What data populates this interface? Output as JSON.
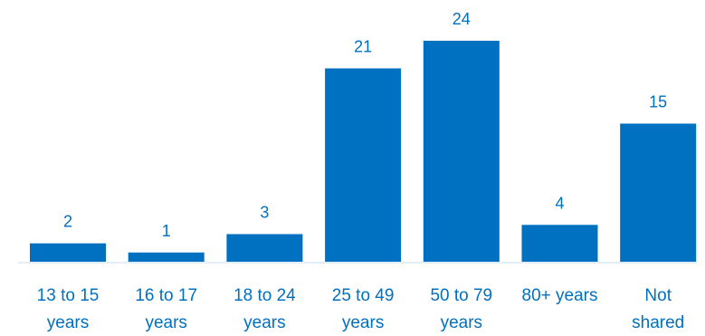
{
  "chart_data": {
    "type": "bar",
    "categories": [
      [
        "13 to 15",
        "years"
      ],
      [
        "16 to 17",
        "years"
      ],
      [
        "18 to 24",
        "years"
      ],
      [
        "25 to 49",
        "years"
      ],
      [
        "50 to 79",
        "years"
      ],
      [
        "80+ years"
      ],
      [
        "Not",
        "shared"
      ]
    ],
    "values": [
      2,
      1,
      3,
      21,
      24,
      4,
      15
    ],
    "title": "",
    "xlabel": "",
    "ylabel": "",
    "ylim": [
      0,
      24
    ],
    "grid": false,
    "legend": "none",
    "colors": {
      "bar": "#0070C0",
      "value_label": "#0070C0",
      "tick_label": "#0070C0",
      "baseline": "#C9DDF0"
    }
  }
}
